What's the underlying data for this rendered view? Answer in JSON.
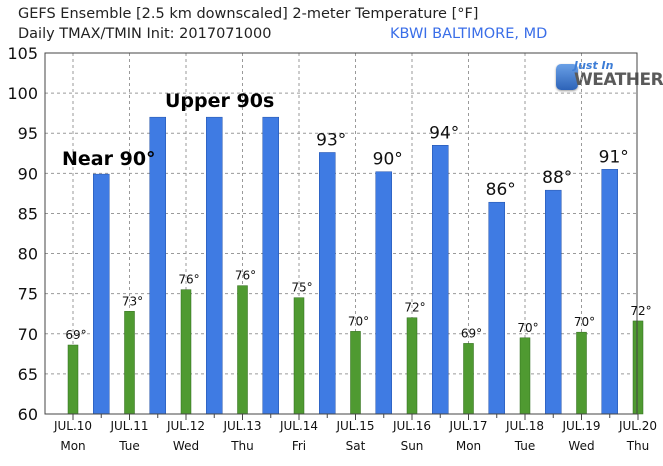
{
  "header": {
    "title_line1": "GEFS Ensemble [2.5 km downscaled] 2-meter Temperature [°F]",
    "title_line2": "Daily TMAX/TMIN Init: 2017071000",
    "station": "KBWI BALTIMORE, MD"
  },
  "logo": {
    "line1": "Just In",
    "line2": "WEATHER",
    "icon": "phone-weather-logo-icon"
  },
  "colors": {
    "tmax": "#3f7be3",
    "tmin": "#4f9a31",
    "background": "#ffffff",
    "grid": "#9a9a9a"
  },
  "chart_data": {
    "type": "bar",
    "ylim": [
      60,
      105
    ],
    "yticks": [
      60,
      65,
      70,
      75,
      80,
      85,
      90,
      95,
      100,
      105
    ],
    "grid": true,
    "date_labels": [
      "JUL.10",
      "JUL.11",
      "JUL.12",
      "JUL.13",
      "JUL.14",
      "JUL.15",
      "JUL.16",
      "JUL.17",
      "JUL.18",
      "JUL.19",
      "JUL.20"
    ],
    "day_labels": [
      "Mon",
      "Tue",
      "Wed",
      "Thu",
      "Fri",
      "Sat",
      "Sun",
      "Mon",
      "Tue",
      "Wed",
      "Thu"
    ],
    "series": [
      {
        "name": "TMIN",
        "values": [
          68.6,
          72.8,
          75.5,
          76.0,
          74.5,
          70.3,
          72.0,
          68.8,
          69.5,
          70.2,
          71.6
        ]
      },
      {
        "name": "TMAX",
        "values": [
          89.9,
          97,
          97,
          97,
          92.6,
          90.2,
          93.5,
          86.4,
          87.9,
          90.5
        ]
      }
    ],
    "data_labels": {
      "tmin": [
        "69°",
        "73°",
        "76°",
        "76°",
        "75°",
        "70°",
        "72°",
        "69°",
        "70°",
        "70°",
        "72°"
      ],
      "tmax": [
        "",
        "",
        "",
        "",
        "93°",
        "90°",
        "94°",
        "86°",
        "88°",
        "91°"
      ]
    },
    "annotations": [
      "Near 90°",
      "Upper 90s"
    ]
  }
}
